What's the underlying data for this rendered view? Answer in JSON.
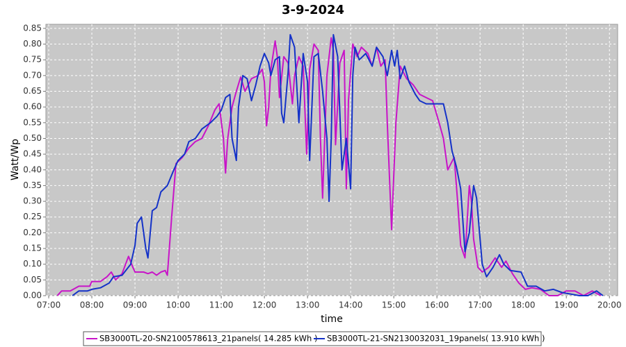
{
  "chart_data": {
    "type": "line",
    "title": "3-9-2024",
    "x_label": "time",
    "y_label": "Watt/Wp",
    "xlim": [
      6.935,
      20.19
    ],
    "ylim": [
      0,
      0.863
    ],
    "grid": true,
    "legend": "bottom",
    "xticks": [
      {
        "value": 7,
        "label": "07:00"
      },
      {
        "value": 8,
        "label": "08:00"
      },
      {
        "value": 9,
        "label": "09:00"
      },
      {
        "value": 10,
        "label": "10:00"
      },
      {
        "value": 11,
        "label": "11:00"
      },
      {
        "value": 12,
        "label": "12:00"
      },
      {
        "value": 13,
        "label": "13:00"
      },
      {
        "value": 14,
        "label": "14:00"
      },
      {
        "value": 15,
        "label": "15:00"
      },
      {
        "value": 16,
        "label": "16:00"
      },
      {
        "value": 17,
        "label": "17:00"
      },
      {
        "value": 18,
        "label": "18:00"
      },
      {
        "value": 19,
        "label": "19:00"
      },
      {
        "value": 20,
        "label": "20:00"
      }
    ],
    "yticks": [
      {
        "value": 0,
        "label": "0.00"
      },
      0.05,
      {
        "value": 0.1,
        "label": "0.10"
      },
      0.15,
      {
        "value": 0.2,
        "label": "0.20"
      },
      0.25,
      {
        "value": 0.3,
        "label": "0.30"
      },
      0.35,
      {
        "value": 0.4,
        "label": "0.40"
      },
      0.45,
      {
        "value": 0.5,
        "label": "0.50"
      },
      0.55,
      {
        "value": 0.6,
        "label": "0.60"
      },
      0.65,
      {
        "value": 0.7,
        "label": "0.70"
      },
      0.75,
      {
        "value": 0.8,
        "label": "0.80"
      },
      0.85
    ],
    "series": [
      {
        "name": "SB3000TL-20-SN2100578613_21panels( 14.285 kWh )",
        "color": "#c814c8",
        "x": [
          7.2,
          7.3,
          7.5,
          7.7,
          7.95,
          8.0,
          8.2,
          8.35,
          8.45,
          8.55,
          8.7,
          8.85,
          8.95,
          9.0,
          9.2,
          9.3,
          9.4,
          9.5,
          9.6,
          9.7,
          9.75,
          9.85,
          9.95,
          10.1,
          10.25,
          10.4,
          10.55,
          10.7,
          10.85,
          10.95,
          11.05,
          11.1,
          11.15,
          11.25,
          11.35,
          11.45,
          11.55,
          11.7,
          11.85,
          11.95,
          12.0,
          12.05,
          12.1,
          12.15,
          12.25,
          12.3,
          12.35,
          12.45,
          12.55,
          12.65,
          12.7,
          12.8,
          12.9,
          12.98,
          13.05,
          13.15,
          13.25,
          13.3,
          13.35,
          13.45,
          13.55,
          13.6,
          13.65,
          13.75,
          13.85,
          13.9,
          13.95,
          14.05,
          14.15,
          14.25,
          14.4,
          14.5,
          14.6,
          14.7,
          14.8,
          14.85,
          14.95,
          15.05,
          15.15,
          15.3,
          15.45,
          15.6,
          15.75,
          15.9,
          16.05,
          16.15,
          16.25,
          16.4,
          16.48,
          16.55,
          16.65,
          16.75,
          16.8,
          16.85,
          16.95,
          17.05,
          17.2,
          17.35,
          17.5,
          17.6,
          17.75,
          17.9,
          18.05,
          18.2,
          18.4,
          18.6,
          18.8,
          19.0,
          19.2,
          19.4,
          19.6,
          19.8
        ],
        "values": [
          0.0,
          0.015,
          0.015,
          0.03,
          0.03,
          0.045,
          0.045,
          0.06,
          0.075,
          0.05,
          0.07,
          0.125,
          0.09,
          0.075,
          0.075,
          0.07,
          0.075,
          0.065,
          0.075,
          0.08,
          0.065,
          0.25,
          0.42,
          0.44,
          0.47,
          0.49,
          0.5,
          0.54,
          0.59,
          0.61,
          0.5,
          0.39,
          0.5,
          0.6,
          0.65,
          0.695,
          0.65,
          0.69,
          0.7,
          0.72,
          0.68,
          0.54,
          0.6,
          0.72,
          0.81,
          0.76,
          0.63,
          0.76,
          0.74,
          0.61,
          0.7,
          0.76,
          0.73,
          0.45,
          0.72,
          0.8,
          0.78,
          0.5,
          0.31,
          0.7,
          0.82,
          0.78,
          0.48,
          0.74,
          0.78,
          0.34,
          0.62,
          0.8,
          0.76,
          0.79,
          0.77,
          0.73,
          0.79,
          0.73,
          0.75,
          0.55,
          0.21,
          0.55,
          0.73,
          0.69,
          0.67,
          0.64,
          0.63,
          0.62,
          0.55,
          0.5,
          0.4,
          0.44,
          0.3,
          0.16,
          0.12,
          0.35,
          0.3,
          0.18,
          0.09,
          0.075,
          0.09,
          0.12,
          0.09,
          0.11,
          0.07,
          0.04,
          0.02,
          0.025,
          0.02,
          0.0,
          0.0,
          0.015,
          0.015,
          0.0,
          0.015,
          0.0
        ]
      },
      {
        "name": "SB3000TL-21-SN2130032031_19panels( 13.910 kWh )",
        "color": "#1432c8",
        "x": [
          7.55,
          7.7,
          7.9,
          8.0,
          8.2,
          8.4,
          8.5,
          8.7,
          8.9,
          9.0,
          9.05,
          9.15,
          9.25,
          9.3,
          9.4,
          9.5,
          9.6,
          9.75,
          9.9,
          10.0,
          10.15,
          10.25,
          10.4,
          10.55,
          10.75,
          10.9,
          11.0,
          11.1,
          11.2,
          11.25,
          11.35,
          11.4,
          11.5,
          11.6,
          11.7,
          11.8,
          11.9,
          12.0,
          12.1,
          12.15,
          12.25,
          12.35,
          12.4,
          12.45,
          12.55,
          12.6,
          12.7,
          12.75,
          12.8,
          12.9,
          13.0,
          13.05,
          13.15,
          13.25,
          13.35,
          13.45,
          13.5,
          13.55,
          13.6,
          13.7,
          13.8,
          13.9,
          14.0,
          14.05,
          14.1,
          14.2,
          14.35,
          14.5,
          14.6,
          14.75,
          14.85,
          14.95,
          15.02,
          15.08,
          15.15,
          15.25,
          15.35,
          15.5,
          15.6,
          15.75,
          16.05,
          16.15,
          16.25,
          16.35,
          16.45,
          16.55,
          16.65,
          16.75,
          16.85,
          16.92,
          17.05,
          17.15,
          17.3,
          17.45,
          17.55,
          17.7,
          17.95,
          18.1,
          18.3,
          18.5,
          18.7,
          18.9,
          19.1,
          19.3,
          19.5,
          19.7,
          19.85
        ],
        "values": [
          0.0,
          0.015,
          0.015,
          0.02,
          0.025,
          0.04,
          0.06,
          0.065,
          0.1,
          0.16,
          0.23,
          0.25,
          0.15,
          0.12,
          0.27,
          0.28,
          0.33,
          0.35,
          0.4,
          0.43,
          0.45,
          0.49,
          0.5,
          0.53,
          0.55,
          0.57,
          0.59,
          0.63,
          0.64,
          0.5,
          0.43,
          0.6,
          0.7,
          0.69,
          0.62,
          0.67,
          0.73,
          0.77,
          0.74,
          0.7,
          0.75,
          0.76,
          0.58,
          0.55,
          0.71,
          0.83,
          0.79,
          0.67,
          0.55,
          0.77,
          0.68,
          0.43,
          0.76,
          0.77,
          0.65,
          0.5,
          0.3,
          0.5,
          0.83,
          0.76,
          0.4,
          0.5,
          0.34,
          0.7,
          0.79,
          0.75,
          0.77,
          0.73,
          0.79,
          0.76,
          0.7,
          0.78,
          0.73,
          0.78,
          0.69,
          0.73,
          0.68,
          0.64,
          0.62,
          0.61,
          0.61,
          0.61,
          0.55,
          0.46,
          0.41,
          0.34,
          0.14,
          0.2,
          0.35,
          0.31,
          0.1,
          0.06,
          0.09,
          0.13,
          0.1,
          0.08,
          0.075,
          0.03,
          0.03,
          0.015,
          0.02,
          0.01,
          0.005,
          0.0,
          0.0,
          0.015,
          0.0
        ]
      }
    ]
  }
}
